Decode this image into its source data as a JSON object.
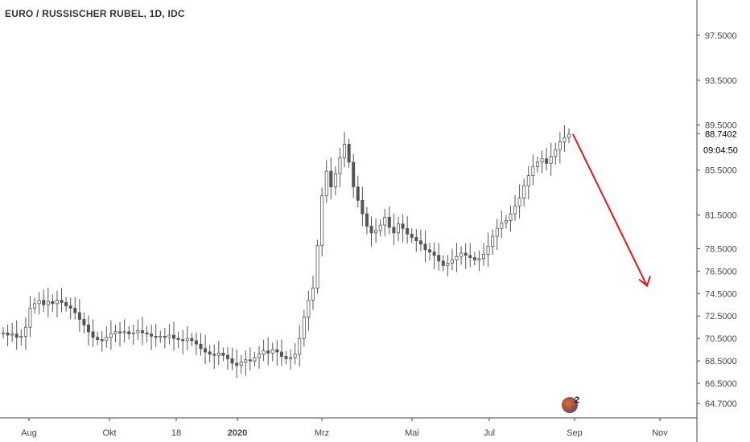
{
  "chart_data": {
    "type": "candlestick",
    "title": "EURO / RUSSISCHER RUBEL, 1D, IDC",
    "xlabel": "",
    "ylabel": "",
    "x_tick_labels": [
      "Aug",
      "Okt",
      "18",
      "2020",
      "Mrz",
      "Mai",
      "Jul",
      "Sep",
      "Nov"
    ],
    "y_tick_labels": [
      "97.5000",
      "93.5000",
      "89.5000",
      "85.5000",
      "81.5000",
      "78.5000",
      "76.5000",
      "74.5000",
      "72.5000",
      "70.5000",
      "68.5000",
      "66.5000",
      "64.7000"
    ],
    "current_price": "88.7402",
    "countdown": "09:04:50",
    "ylim": [
      64.0,
      99.0
    ],
    "series": [
      {
        "values": [
          71.0,
          70.8,
          70.9,
          70.6,
          70.7,
          71.5,
          73.2,
          73.6,
          73.9,
          73.5,
          73.8,
          73.6,
          73.9,
          73.7,
          73.4,
          73.2,
          72.8,
          72.2,
          71.7,
          71.1,
          70.6,
          70.4,
          70.3,
          70.6,
          70.9,
          71.1,
          71.0,
          71.1,
          70.9,
          71.0,
          71.2,
          71.0,
          70.9,
          70.7,
          70.6,
          70.7,
          70.6,
          70.8,
          70.5,
          70.4,
          70.3,
          70.5,
          70.3,
          70.0,
          69.6,
          69.3,
          69.1,
          69.0,
          69.2,
          69.0,
          68.7,
          68.3,
          68.1,
          68.4,
          68.6,
          68.5,
          68.8,
          69.1,
          69.4,
          69.2,
          69.5,
          69.3,
          68.9,
          68.7,
          68.8,
          69.1,
          70.5,
          72.4,
          73.9,
          75.0,
          78.8,
          83.2,
          85.4,
          84.0,
          85.2,
          86.6,
          87.8,
          86.2,
          84.0,
          82.8,
          81.6,
          80.5,
          79.9,
          80.1,
          80.6,
          81.3,
          80.4,
          79.9,
          80.7,
          80.3,
          79.8,
          79.5,
          79.2,
          78.9,
          78.4,
          78.2,
          77.9,
          77.4,
          77.0,
          77.2,
          77.5,
          77.8,
          78.1,
          77.9,
          77.7,
          77.5,
          77.6,
          78.0,
          78.7,
          79.6,
          80.3,
          80.8,
          81.0,
          81.6,
          82.3,
          83.0,
          84.1,
          85.0,
          85.8,
          86.2,
          86.5,
          86.1,
          86.7,
          87.3,
          88.0,
          88.4,
          88.7
        ]
      }
    ],
    "annotations": [
      {
        "type": "arrow",
        "color": "#e8161c",
        "from": [
          0.98,
          88.7
        ],
        "to": [
          1.1,
          75.2
        ]
      }
    ],
    "grid": false,
    "legend": "none"
  },
  "colors": {
    "candle": "#555555",
    "axis": "#444444",
    "arrow": "#e8161c",
    "price_label_bg": "#ffffff"
  },
  "badge": {
    "number": "2",
    "icon": "logo-badge-icon"
  }
}
